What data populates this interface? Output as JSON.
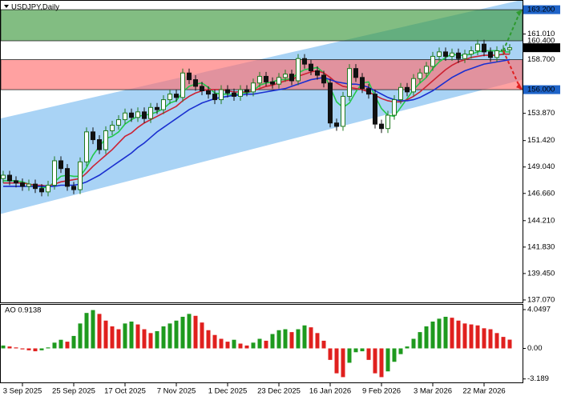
{
  "chart_data": [
    {
      "type": "candlestick",
      "title": "USDJPY,Daily",
      "categories": [
        null,
        null,
        null,
        "3 Sep 2025",
        null,
        null,
        null,
        null,
        null,
        null,
        null,
        "25 Sep 2025",
        null,
        null,
        null,
        null,
        null,
        null,
        null,
        "17 Oct 2025",
        null,
        null,
        null,
        null,
        null,
        null,
        null,
        "7 Nov 2025",
        null,
        null,
        null,
        null,
        null,
        null,
        null,
        "1 Dec 2025",
        null,
        null,
        null,
        null,
        null,
        null,
        null,
        "23 Dec 2025",
        null,
        null,
        null,
        null,
        null,
        null,
        null,
        "16 Jan 2026",
        null,
        null,
        null,
        null,
        null,
        null,
        null,
        "9 Feb 2026",
        null,
        null,
        null,
        null,
        null,
        null,
        null,
        "3 Mar 2026",
        null,
        null,
        null,
        null,
        null,
        null,
        null,
        "22 Mar 2026",
        null,
        null,
        null,
        null
      ],
      "open": [
        148.0,
        148.3,
        147.8,
        147.6,
        147.3,
        147.5,
        147.1,
        146.8,
        147.4,
        149.6,
        148.9,
        147.3,
        147.0,
        149.5,
        152.2,
        151.5,
        150.6,
        152.3,
        152.8,
        153.3,
        153.9,
        153.5,
        154.0,
        153.4,
        154.4,
        154.2,
        155.1,
        155.6,
        155.3,
        157.5,
        156.9,
        156.3,
        155.9,
        155.6,
        155.1,
        156.0,
        155.7,
        155.4,
        156.0,
        155.8,
        156.6,
        157.2,
        156.7,
        156.5,
        157.1,
        157.4,
        156.8,
        158.8,
        158.3,
        157.7,
        157.3,
        156.6,
        153.0,
        152.7,
        155.4,
        157.9,
        157.1,
        156.1,
        155.6,
        152.9,
        152.5,
        153.7,
        155.1,
        156.2,
        155.8,
        157.0,
        157.5,
        158.1,
        159.0,
        159.4,
        159.0,
        159.3,
        158.8,
        159.2,
        159.5,
        160.1,
        159.4,
        158.9,
        159.5,
        159.6
      ],
      "high": [
        148.7,
        148.7,
        148.2,
        148.0,
        147.9,
        147.9,
        147.5,
        147.8,
        150.0,
        150.0,
        149.3,
        147.7,
        149.9,
        152.6,
        152.6,
        151.9,
        152.7,
        153.2,
        153.7,
        154.3,
        154.3,
        154.4,
        154.4,
        154.8,
        154.8,
        155.5,
        156.0,
        156.0,
        157.9,
        157.9,
        157.3,
        156.7,
        156.3,
        156.0,
        156.4,
        156.4,
        156.1,
        156.4,
        156.4,
        157.0,
        157.6,
        157.6,
        157.1,
        157.5,
        157.8,
        157.8,
        159.2,
        159.2,
        158.7,
        158.1,
        157.7,
        157.0,
        153.4,
        155.8,
        158.3,
        158.3,
        157.5,
        156.5,
        156.0,
        153.3,
        154.1,
        155.5,
        156.6,
        156.6,
        157.4,
        157.9,
        158.5,
        159.4,
        159.8,
        159.8,
        159.7,
        159.7,
        159.6,
        159.9,
        160.5,
        160.5,
        159.8,
        159.9,
        160.0,
        160.1
      ],
      "low": [
        147.6,
        147.4,
        147.2,
        146.9,
        146.9,
        146.7,
        146.4,
        146.4,
        147.0,
        148.5,
        146.9,
        146.6,
        146.6,
        149.1,
        151.1,
        150.2,
        150.2,
        151.9,
        152.4,
        152.9,
        153.1,
        153.1,
        153.0,
        153.0,
        153.8,
        153.8,
        154.7,
        154.9,
        154.9,
        156.5,
        155.9,
        155.5,
        155.2,
        154.7,
        154.7,
        155.3,
        155.0,
        155.0,
        155.4,
        155.4,
        156.2,
        156.3,
        156.1,
        156.1,
        156.7,
        156.4,
        156.4,
        157.9,
        157.3,
        156.9,
        156.2,
        152.6,
        152.3,
        152.3,
        155.0,
        156.7,
        155.7,
        155.2,
        152.5,
        152.1,
        152.1,
        153.3,
        154.7,
        155.4,
        155.4,
        156.6,
        157.1,
        157.7,
        158.6,
        158.6,
        158.6,
        158.4,
        158.4,
        158.8,
        159.1,
        159.0,
        158.5,
        158.5,
        159.1,
        159.2
      ],
      "close": [
        148.3,
        147.8,
        147.6,
        147.3,
        147.5,
        147.1,
        146.8,
        147.4,
        149.6,
        148.9,
        147.3,
        147.0,
        149.5,
        152.2,
        151.5,
        150.6,
        152.3,
        152.8,
        153.3,
        153.9,
        153.5,
        154.0,
        153.4,
        154.4,
        154.2,
        155.1,
        155.6,
        155.3,
        157.5,
        156.9,
        156.3,
        155.9,
        155.6,
        155.1,
        156.0,
        155.7,
        155.4,
        156.0,
        155.8,
        156.6,
        157.2,
        156.7,
        156.5,
        157.1,
        157.4,
        156.8,
        158.8,
        158.3,
        157.7,
        157.3,
        156.6,
        153.0,
        152.7,
        155.4,
        157.9,
        157.1,
        156.1,
        155.6,
        152.9,
        152.5,
        153.7,
        155.1,
        156.2,
        155.8,
        157.0,
        157.5,
        158.1,
        159.0,
        159.4,
        159.0,
        159.3,
        158.8,
        159.2,
        159.5,
        160.1,
        159.4,
        158.9,
        159.5,
        159.6,
        159.776
      ],
      "up_color": "#1f7a1f",
      "down_color": "#111111",
      "lines": [
        {
          "color": "#22c84a",
          "values": [
            147.8,
            147.8,
            147.8,
            147.7,
            147.5,
            147.4,
            147.2,
            147.2,
            147.7,
            148.2,
            148.3,
            148.2,
            148.2,
            149.0,
            150.1,
            150.9,
            151.6,
            151.8,
            152.2,
            152.9,
            153.3,
            153.6,
            153.7,
            153.8,
            154.0,
            154.3,
            154.8,
            155.0,
            155.8,
            156.3,
            156.5,
            156.6,
            156.2,
            155.7,
            155.6,
            155.6,
            155.5,
            155.7,
            155.7,
            155.9,
            156.4,
            156.6,
            156.7,
            156.9,
            156.9,
            157.0,
            157.5,
            157.8,
            157.9,
            158.0,
            157.5,
            156.2,
            154.9,
            154.4,
            154.8,
            155.8,
            156.6,
            156.7,
            155.4,
            154.3,
            153.7,
            153.6,
            154.4,
            155.2,
            156.0,
            156.6,
            157.1,
            157.9,
            158.5,
            158.9,
            159.2,
            159.1,
            159.1,
            159.2,
            159.4,
            159.5,
            159.5,
            159.5,
            159.4,
            159.4
          ]
        },
        {
          "color": "#cc2233",
          "values": [
            147.6,
            147.6,
            147.6,
            147.6,
            147.5,
            147.4,
            147.4,
            147.3,
            147.5,
            147.7,
            147.8,
            147.9,
            148.0,
            148.5,
            149.1,
            149.6,
            150.1,
            150.6,
            151.2,
            151.8,
            152.1,
            152.6,
            153.0,
            153.3,
            153.6,
            153.9,
            154.2,
            154.5,
            155.0,
            155.4,
            155.7,
            155.9,
            156.0,
            156.0,
            156.0,
            155.9,
            155.8,
            155.8,
            155.8,
            155.9,
            156.1,
            156.3,
            156.4,
            156.6,
            156.8,
            156.9,
            157.2,
            157.4,
            157.6,
            157.7,
            157.5,
            157.1,
            156.6,
            156.3,
            156.2,
            156.1,
            156.0,
            155.8,
            155.5,
            155.2,
            155.0,
            154.9,
            154.9,
            155.1,
            155.4,
            155.8,
            156.3,
            156.8,
            157.3,
            157.8,
            158.2,
            158.5,
            158.7,
            158.9,
            159.0,
            159.1,
            159.1,
            159.1,
            159.2,
            159.2
          ]
        },
        {
          "color": "#1a2fd0",
          "values": [
            147.3,
            147.3,
            147.3,
            147.3,
            147.3,
            147.3,
            147.3,
            147.3,
            147.3,
            147.4,
            147.4,
            147.4,
            147.5,
            147.7,
            148.0,
            148.3,
            148.7,
            149.1,
            149.5,
            149.9,
            150.3,
            150.8,
            151.2,
            151.7,
            152.2,
            152.6,
            153.0,
            153.4,
            153.8,
            154.2,
            154.5,
            154.8,
            155.0,
            155.2,
            155.3,
            155.4,
            155.5,
            155.5,
            155.6,
            155.6,
            155.7,
            155.8,
            155.9,
            156.0,
            156.1,
            156.3,
            156.5,
            156.7,
            156.9,
            157.0,
            157.1,
            156.9,
            156.7,
            156.6,
            156.5,
            156.5,
            156.4,
            156.2,
            155.9,
            155.6,
            155.3,
            155.1,
            155.0,
            155.0,
            155.1,
            155.3,
            155.6,
            155.9,
            156.3,
            156.7,
            157.1,
            157.4,
            157.7,
            157.9,
            158.1,
            158.3,
            158.4,
            158.5,
            158.6,
            158.7
          ]
        }
      ],
      "channel": {
        "upper": [
          153.4,
          164.1
        ],
        "lower": [
          144.8,
          156.9
        ],
        "color": "#a9d3f5"
      },
      "zones": [
        {
          "from": 160.4,
          "to": 163.2,
          "color": "#3f9a3f"
        },
        {
          "from": 156.0,
          "to": 158.7,
          "color": "#ff6f6f"
        }
      ],
      "arrows": [
        {
          "from": 159.5,
          "to": 163.2,
          "color": "#2e9a2e"
        },
        {
          "from": 159.5,
          "to": 156.0,
          "color": "#e02020"
        }
      ],
      "ylim": [
        136.85,
        164.0
      ],
      "yticks": [
        {
          "value": 161.01,
          "label": "161.010"
        },
        {
          "value": 153.87,
          "label": "153.870"
        },
        {
          "value": 151.42,
          "label": "151.420"
        },
        {
          "value": 149.04,
          "label": "149.040"
        },
        {
          "value": 146.66,
          "label": "146.660"
        },
        {
          "value": 144.21,
          "label": "144.210"
        },
        {
          "value": 141.83,
          "label": "141.830"
        },
        {
          "value": 139.45,
          "label": "139.450"
        },
        {
          "value": 137.07,
          "label": "137.070"
        }
      ],
      "price_labels": [
        {
          "value": 163.2,
          "label": "163.200",
          "color": "#1e63c8"
        },
        {
          "value": 160.4,
          "label": "160.400"
        },
        {
          "value": 159.776,
          "label": "159.776",
          "color": "#000000"
        },
        {
          "value": 158.7,
          "label": "158.700"
        },
        {
          "value": 156.0,
          "label": "156.000",
          "color": "#1e63c8"
        }
      ]
    },
    {
      "type": "histogram",
      "title": "AO 0.9138",
      "values": [
        0.3,
        0.2,
        0.1,
        -0.1,
        -0.2,
        -0.3,
        -0.2,
        0.1,
        0.6,
        0.9,
        0.7,
        1.3,
        2.6,
        3.7,
        4.0,
        3.6,
        2.9,
        2.3,
        2.0,
        2.6,
        2.8,
        2.5,
        2.0,
        1.6,
        1.8,
        2.3,
        2.6,
        2.9,
        3.3,
        3.6,
        3.4,
        2.7,
        1.9,
        1.4,
        1.0,
        0.7,
        0.9,
        0.5,
        0.3,
        0.6,
        1.0,
        0.8,
        1.5,
        1.9,
        2.0,
        1.7,
        2.0,
        2.4,
        2.2,
        1.6,
        0.8,
        -1.2,
        -2.6,
        -3.0,
        -1.5,
        -0.4,
        -0.3,
        -1.2,
        -2.6,
        -3.0,
        -2.4,
        -1.4,
        -0.6,
        0.2,
        1.0,
        1.7,
        2.3,
        2.8,
        3.1,
        3.3,
        3.2,
        2.9,
        2.6,
        2.5,
        2.4,
        2.1,
        2.0,
        1.6,
        1.2,
        0.9138
      ],
      "up_color": "#1e9a1e",
      "down_color": "#e0201e",
      "ylim": [
        -3.55,
        4.55
      ],
      "yticks": [
        4.0497,
        {
          "value": 0,
          "label": "0.00"
        },
        -3.189
      ]
    }
  ]
}
